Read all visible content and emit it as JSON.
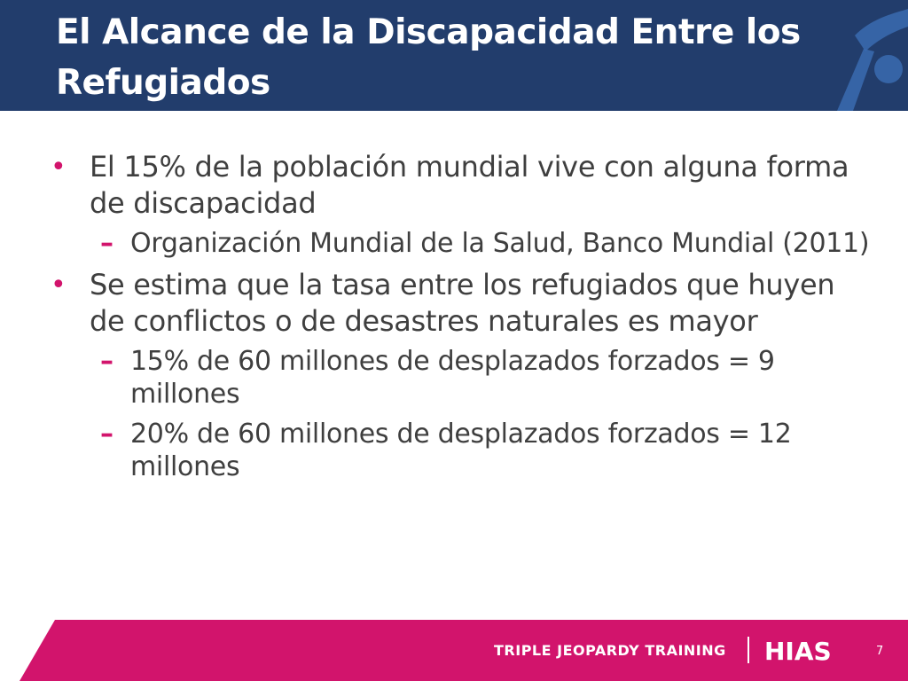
{
  "slide": {
    "title": "El Alcance de la Discapacidad Entre los Refugiados",
    "bullets": [
      {
        "text": "El 15% de la población mundial vive con alguna forma de discapacidad",
        "sub": [
          "Organización Mundial de la Salud, Banco Mundial (2011)"
        ]
      },
      {
        "text": "Se estima que la tasa entre los refugiados que huyen de conflictos o de desastres naturales es mayor",
        "sub": [
          "15% de 60 millones de desplazados forzados = 9 millones",
          "20% de 60 millones de desplazados forzados = 12 millones"
        ]
      }
    ],
    "bullet_symbol": "•",
    "dash_symbol": "–"
  },
  "footer": {
    "program": "TRIPLE JEOPARDY TRAINING",
    "brand": "HIAS",
    "page_number": "7"
  },
  "colors": {
    "header_bg": "#223d6c",
    "accent": "#d2146c",
    "body_text": "#3f3f3f"
  }
}
